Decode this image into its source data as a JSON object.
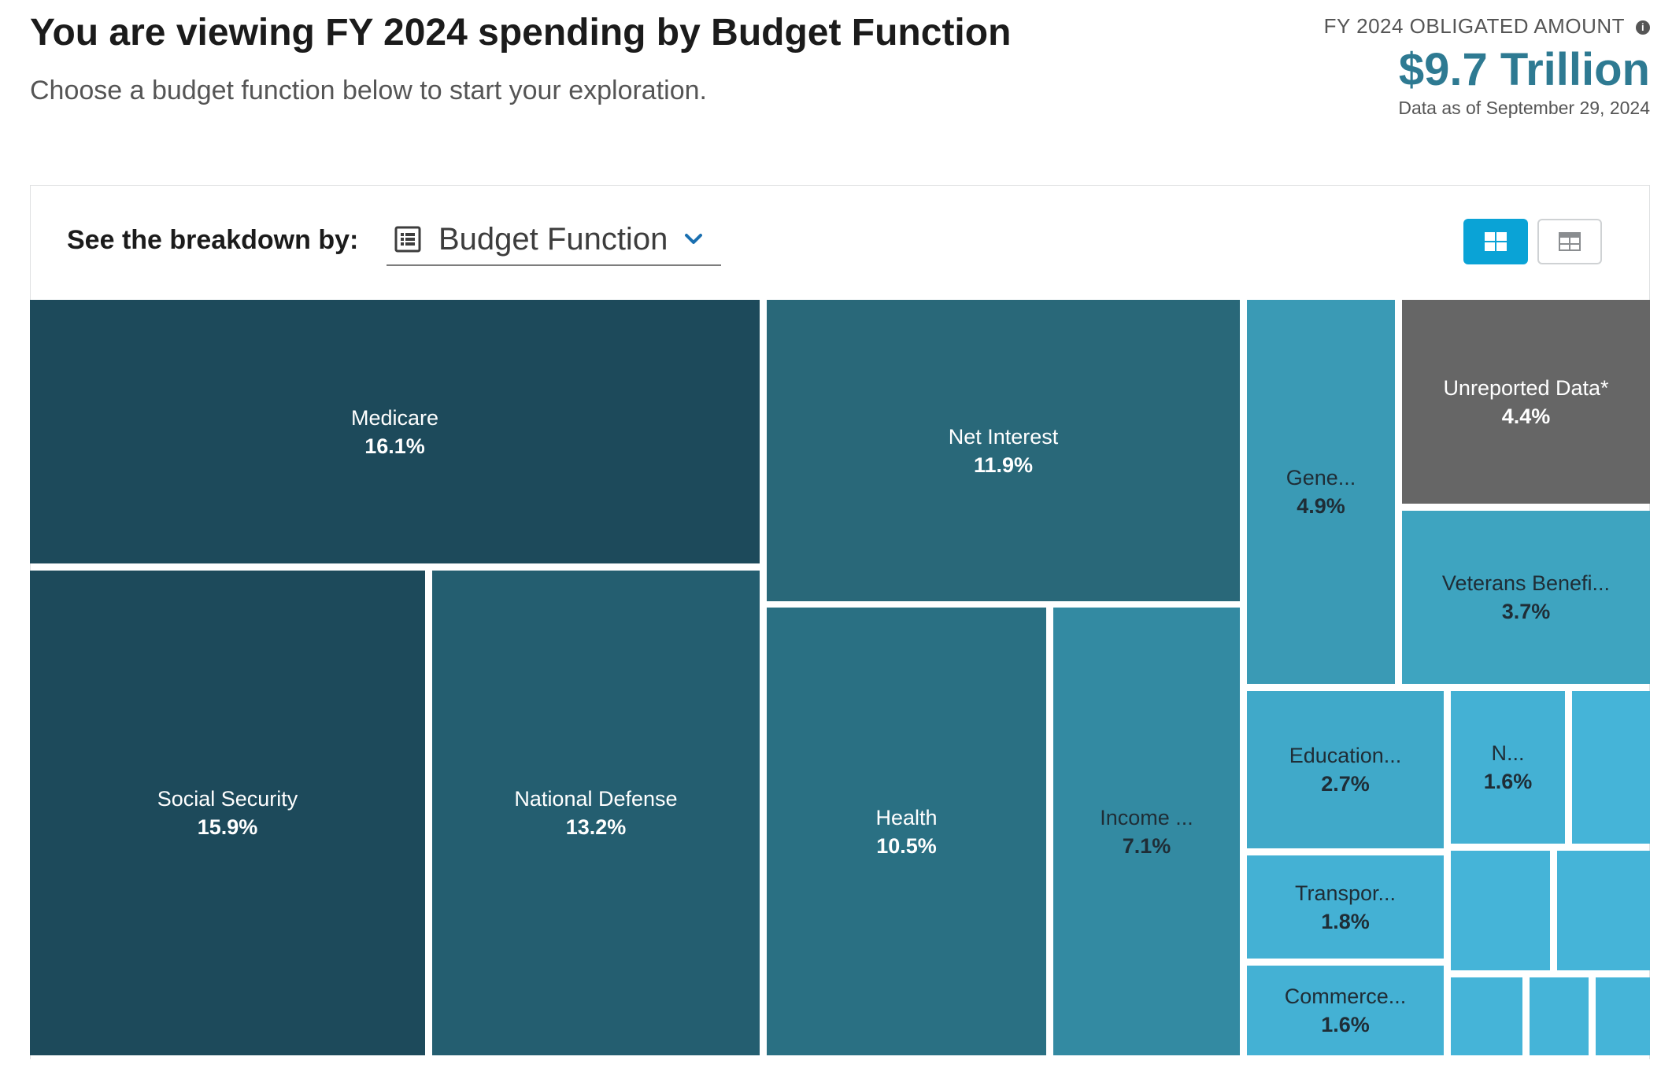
{
  "header": {
    "title": "You are viewing FY 2024 spending by Budget Function",
    "subtitle": "Choose a budget function below to start your exploration."
  },
  "summary": {
    "label": "FY 2024 OBLIGATED AMOUNT",
    "info_icon": "info-icon",
    "amount": "$9.7 Trillion",
    "as_of": "Data as of September 29, 2024"
  },
  "controls": {
    "breakdown_label": "See the breakdown by:",
    "breakdown_value": "Budget Function",
    "breakdown_icon": "list-icon",
    "view_toggle": {
      "active": "treemap",
      "treemap_icon": "grid-icon",
      "table_icon": "table-icon",
      "active_color": "#0aa3d6"
    }
  },
  "treemap": {
    "tiles": [
      {
        "name": "Medicare",
        "percent": "16.1%",
        "color": "#1d4a5b"
      },
      {
        "name": "Social Security",
        "percent": "15.9%",
        "color": "#1d4a5b"
      },
      {
        "name": "National Defense",
        "percent": "13.2%",
        "color": "#245e70"
      },
      {
        "name": "Net Interest",
        "percent": "11.9%",
        "color": "#296879"
      },
      {
        "name": "Health",
        "percent": "10.5%",
        "color": "#2a7083"
      },
      {
        "name": "Income ...",
        "percent": "7.1%",
        "color": "#338aa2"
      },
      {
        "name": "Gene...",
        "percent": "4.9%",
        "color": "#3a9ab5"
      },
      {
        "name": "Unreported Data*",
        "percent": "4.4%",
        "color": "#666666"
      },
      {
        "name": "Veterans Benefi...",
        "percent": "3.7%",
        "color": "#3ea4c0"
      },
      {
        "name": "Education...",
        "percent": "2.7%",
        "color": "#40a9c9"
      },
      {
        "name": "N...",
        "percent": "1.6%",
        "color": "#44b1d4"
      },
      {
        "name": "Transpor...",
        "percent": "1.8%",
        "color": "#44b1d4"
      },
      {
        "name": "Commerce...",
        "percent": "1.6%",
        "color": "#44b1d4"
      }
    ],
    "unlabeled_color": "#45b4d8"
  }
}
